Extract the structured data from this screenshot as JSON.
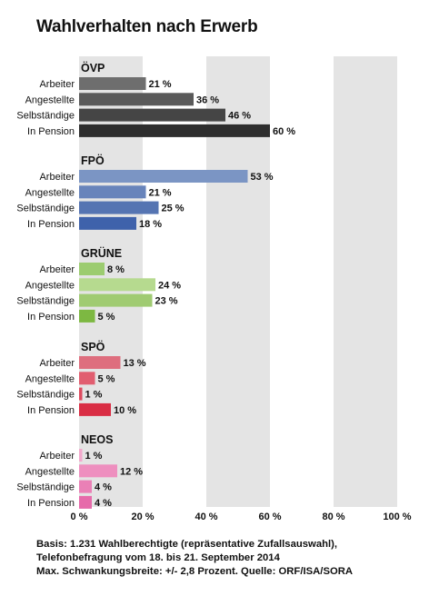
{
  "title": "Wahlverhalten nach Erwerb",
  "footer": {
    "line1": "Basis: 1.231 Wahlberechtigte (repräsentative Zufallsauswahl),",
    "line2": "Telefonbefragung vom 18. bis 21. September 2014",
    "line3": "Max. Schwankungsbreite: +/- 2,8 Prozent. Quelle: ORF/ISA/SORA"
  },
  "chart_data": {
    "type": "bar",
    "orientation": "horizontal",
    "xlim": [
      0,
      100
    ],
    "x_ticks": [
      "0 %",
      "20 %",
      "40 %",
      "60 %",
      "80 %",
      "100 %"
    ],
    "grid": "alternating vertical bands",
    "categories": [
      "Arbeiter",
      "Angestellte",
      "Selbständige",
      "In Pension"
    ],
    "groups": [
      {
        "name": "ÖVP",
        "values": [
          21,
          36,
          46,
          60
        ],
        "labels": [
          "21 %",
          "36 %",
          "46 %",
          "60 %"
        ],
        "colors": [
          "#6e6e6e",
          "#5a5a5a",
          "#454545",
          "#2e2e2e"
        ]
      },
      {
        "name": "FPÖ",
        "values": [
          53,
          21,
          25,
          18
        ],
        "labels": [
          "53 %",
          "21 %",
          "25 %",
          "18 %"
        ],
        "colors": [
          "#7b95c4",
          "#6884bb",
          "#5574b2",
          "#3f62ab"
        ]
      },
      {
        "name": "GRÜNE",
        "values": [
          8,
          24,
          23,
          5
        ],
        "labels": [
          "8 %",
          "24 %",
          "23 %",
          "5 %"
        ],
        "colors": [
          "#9ccc70",
          "#b6da8f",
          "#a0cb72",
          "#7db842"
        ]
      },
      {
        "name": "SPÖ",
        "values": [
          13,
          5,
          1,
          10
        ],
        "labels": [
          "13 %",
          "5 %",
          "1 %",
          "10 %"
        ],
        "colors": [
          "#de6e7e",
          "#e15e70",
          "#dd4c60",
          "#d92d44"
        ]
      },
      {
        "name": "NEOS",
        "values": [
          1,
          12,
          4,
          4
        ],
        "labels": [
          "1 %",
          "12 %",
          "4 %",
          "4 %"
        ],
        "colors": [
          "#f3a9cd",
          "#ee8fbf",
          "#ea80b6",
          "#e66aaa"
        ]
      }
    ]
  }
}
